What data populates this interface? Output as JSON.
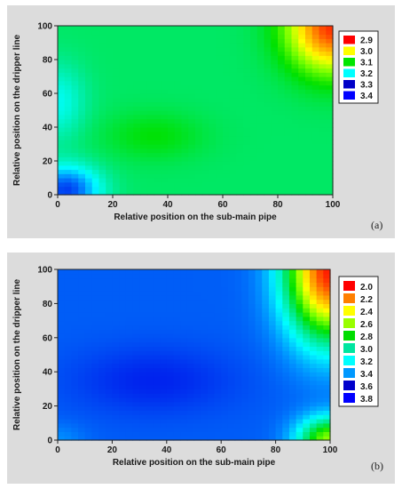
{
  "chart_data": [
    {
      "type": "heatmap",
      "panel_label": "(a)",
      "xlabel": "Relative position on the sub-main pipe",
      "ylabel": "Relative position on the dripper line",
      "xlim": [
        0,
        100
      ],
      "ylim": [
        0,
        100
      ],
      "x_ticks": [
        0,
        20,
        40,
        60,
        80,
        100
      ],
      "y_ticks": [
        0,
        20,
        40,
        60,
        80,
        100
      ],
      "legend": [
        {
          "label": "2.9",
          "color": "#ff0000"
        },
        {
          "label": "3.0",
          "color": "#ffff00"
        },
        {
          "label": "3.1",
          "color": "#00e600"
        },
        {
          "label": "3.2",
          "color": "#00ffff"
        },
        {
          "label": "3.3",
          "color": "#0000c8"
        },
        {
          "label": "3.4",
          "color": "#0000ff"
        }
      ],
      "field": {
        "baseline": 3.1,
        "features": [
          {
            "x": 100,
            "y": 100,
            "amplitude": -0.22,
            "sigma_x": 16,
            "sigma_y": 26
          },
          {
            "x": 3,
            "y": 3,
            "amplitude": 0.14,
            "sigma_x": 12,
            "sigma_y": 14
          },
          {
            "x": 0,
            "y": 55,
            "amplitude": 0.05,
            "sigma_x": 10,
            "sigma_y": 22
          },
          {
            "x": 35,
            "y": 35,
            "amplitude": -0.03,
            "sigma_x": 18,
            "sigma_y": 14
          }
        ],
        "value_min": 2.86,
        "value_max": 3.26
      }
    },
    {
      "type": "heatmap",
      "panel_label": "(b)",
      "xlabel": "Relative position on the sub-main pipe",
      "ylabel": "Relative position on the dripper line",
      "xlim": [
        0,
        100
      ],
      "ylim": [
        0,
        100
      ],
      "x_ticks": [
        0,
        20,
        40,
        60,
        80,
        100
      ],
      "y_ticks": [
        0,
        20,
        40,
        60,
        80,
        100
      ],
      "legend": [
        {
          "label": "2.0",
          "color": "#ff0000"
        },
        {
          "label": "2.2",
          "color": "#ff7f00"
        },
        {
          "label": "2.4",
          "color": "#ffff00"
        },
        {
          "label": "2.6",
          "color": "#99ff00"
        },
        {
          "label": "2.8",
          "color": "#00dd00"
        },
        {
          "label": "3.0",
          "color": "#00e6a0"
        },
        {
          "label": "3.2",
          "color": "#00ffff"
        },
        {
          "label": "3.4",
          "color": "#0099ff"
        },
        {
          "label": "3.6",
          "color": "#0000cc"
        },
        {
          "label": "3.8",
          "color": "#0000ff"
        }
      ],
      "field": {
        "baseline": 3.55,
        "features": [
          {
            "x": 100,
            "y": 100,
            "amplitude": -1.55,
            "sigma_x": 16,
            "sigma_y": 40
          },
          {
            "x": 100,
            "y": 0,
            "amplitude": -0.9,
            "sigma_x": 12,
            "sigma_y": 14
          },
          {
            "x": 35,
            "y": 35,
            "amplitude": 0.12,
            "sigma_x": 30,
            "sigma_y": 20
          },
          {
            "x": 0,
            "y": 0,
            "amplitude": -0.1,
            "sigma_x": 10,
            "sigma_y": 10
          }
        ],
        "value_min": 1.95,
        "value_max": 3.7
      }
    }
  ]
}
